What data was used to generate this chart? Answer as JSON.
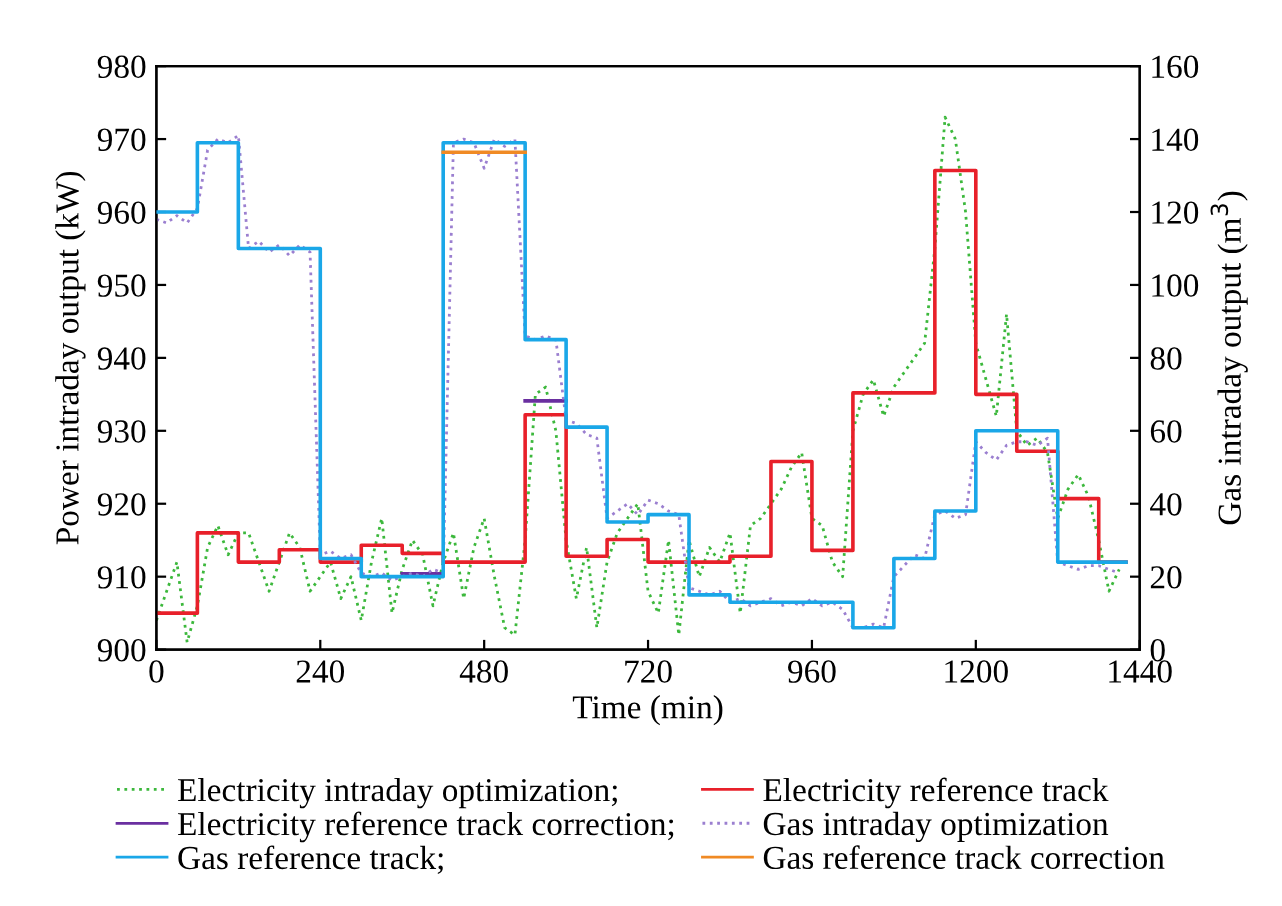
{
  "chart_data": {
    "type": "line",
    "xlabel": "Time (min)",
    "ylabel": "Power intraday output (kW)",
    "y2label": "Gas intraday output (m$^{3}$)",
    "xlim": [
      0,
      1440
    ],
    "xticks": [
      0,
      240,
      480,
      720,
      960,
      1200,
      1440
    ],
    "ylim": [
      900,
      980
    ],
    "yticks": [
      900,
      910,
      920,
      930,
      940,
      950,
      960,
      970,
      980
    ],
    "y2lim": [
      0,
      160
    ],
    "y2ticks": [
      0,
      20,
      40,
      60,
      80,
      100,
      120,
      140,
      160
    ],
    "legend": "bottom",
    "grid": false,
    "series": [
      {
        "name": "Electricity intraday optimization;",
        "line_style": "dotted",
        "color": "#3cb83c",
        "axis": "y",
        "x": [
          0,
          15,
          30,
          45,
          60,
          75,
          90,
          105,
          120,
          135,
          150,
          165,
          180,
          195,
          210,
          225,
          240,
          255,
          270,
          285,
          300,
          315,
          330,
          345,
          360,
          375,
          390,
          405,
          420,
          435,
          450,
          465,
          480,
          495,
          510,
          525,
          540,
          555,
          570,
          585,
          600,
          615,
          630,
          645,
          660,
          675,
          690,
          705,
          720,
          735,
          750,
          765,
          780,
          795,
          810,
          825,
          840,
          855,
          870,
          885,
          900,
          915,
          930,
          945,
          960,
          975,
          990,
          1005,
          1020,
          1035,
          1050,
          1065,
          1080,
          1095,
          1110,
          1125,
          1140,
          1155,
          1170,
          1185,
          1200,
          1215,
          1230,
          1245,
          1260,
          1275,
          1290,
          1305,
          1320,
          1335,
          1350,
          1365,
          1380,
          1395,
          1410
        ],
        "values": [
          904,
          908,
          912,
          901,
          906,
          914,
          917,
          913,
          916,
          916,
          912,
          908,
          912,
          916,
          914,
          908,
          910,
          912,
          907,
          910,
          904,
          912,
          918,
          905,
          911,
          915,
          913,
          906,
          912,
          916,
          907,
          914,
          918,
          910,
          903,
          902,
          915,
          935,
          936,
          930,
          915,
          907,
          914,
          903,
          912,
          916,
          918,
          920,
          908,
          905,
          915,
          902,
          915,
          910,
          914,
          912,
          916,
          905,
          917,
          918,
          920,
          922,
          925,
          927,
          918,
          917,
          912,
          910,
          930,
          935,
          937,
          932,
          936,
          938,
          940,
          942,
          955,
          973,
          970,
          960,
          942,
          937,
          932,
          946,
          930,
          928,
          929,
          927,
          918,
          922,
          924,
          921,
          915,
          908,
          911
        ]
      },
      {
        "name": "Electricity reference track",
        "type": "step",
        "line_style": "solid",
        "color": "#e8202a",
        "axis": "y",
        "x": [
          0,
          60,
          120,
          180,
          240,
          300,
          360,
          420,
          540,
          600,
          660,
          720,
          840,
          900,
          960,
          1020,
          1140,
          1200,
          1260,
          1320,
          1380,
          1420
        ],
        "values": [
          905,
          916,
          912,
          913.7,
          912,
          914.3,
          913.2,
          912,
          932.2,
          912.8,
          915.1,
          912,
          912.8,
          925.8,
          913.6,
          935.2,
          965.7,
          935,
          927.2,
          920.7,
          912,
          912
        ]
      },
      {
        "name": "Electricity reference track correction;",
        "type": "step",
        "line_style": "solid",
        "color": "#6a2fa0",
        "axis": "y",
        "x": [
          360,
          420,
          540,
          600
        ],
        "values": [
          910.4,
          null,
          934.1,
          934.1
        ]
      },
      {
        "name": "Gas intraday optimization",
        "line_style": "dotted",
        "color": "#9b7fd0",
        "axis": "y2",
        "x": [
          0,
          15,
          30,
          45,
          60,
          75,
          90,
          105,
          120,
          135,
          150,
          165,
          180,
          195,
          210,
          225,
          240,
          255,
          270,
          285,
          300,
          315,
          330,
          345,
          360,
          375,
          390,
          405,
          420,
          435,
          450,
          465,
          480,
          495,
          510,
          525,
          540,
          555,
          570,
          585,
          600,
          615,
          630,
          645,
          660,
          675,
          690,
          705,
          720,
          735,
          750,
          765,
          780,
          795,
          810,
          825,
          840,
          855,
          870,
          885,
          900,
          915,
          930,
          945,
          960,
          975,
          990,
          1005,
          1020,
          1035,
          1050,
          1065,
          1080,
          1095,
          1110,
          1125,
          1140,
          1155,
          1170,
          1185,
          1200,
          1215,
          1230,
          1245,
          1260,
          1275,
          1290,
          1305,
          1320,
          1335,
          1350,
          1365,
          1380,
          1395,
          1410
        ],
        "values": [
          118,
          117,
          119,
          117,
          121,
          137,
          140,
          139,
          141,
          110,
          112,
          109,
          111,
          108,
          111,
          109,
          26,
          27,
          25,
          26,
          21,
          20,
          21,
          19,
          20,
          21,
          20,
          22,
          21,
          139,
          140,
          139,
          132,
          140,
          138,
          140,
          86,
          85,
          86,
          85,
          63,
          62,
          59,
          58,
          36,
          38,
          40,
          37,
          41,
          40,
          38,
          37,
          17,
          16,
          15,
          16,
          13,
          14,
          12,
          13,
          14,
          12,
          13,
          12,
          14,
          12,
          13,
          11,
          6,
          6,
          7,
          6,
          20,
          23,
          26,
          25,
          37,
          38,
          36,
          37,
          57,
          54,
          52,
          56,
          57,
          57,
          56,
          58,
          24,
          23,
          22,
          23,
          23,
          22,
          21
        ]
      },
      {
        "name": "Gas reference track;",
        "type": "step",
        "line_style": "solid",
        "color": "#1aa7e8",
        "axis": "y2",
        "x": [
          0,
          60,
          120,
          240,
          300,
          420,
          540,
          600,
          660,
          720,
          780,
          840,
          1020,
          1080,
          1140,
          1200,
          1320,
          1420
        ],
        "values": [
          120,
          139,
          110,
          25,
          20,
          139,
          85,
          61,
          35,
          37,
          15,
          13,
          6,
          25,
          38,
          60,
          24,
          24
        ]
      },
      {
        "name": "Gas reference track correction",
        "type": "step",
        "line_style": "solid",
        "color": "#f08a24",
        "axis": "y2",
        "x": [
          420,
          540
        ],
        "values": [
          136.4,
          136.4
        ]
      }
    ]
  }
}
